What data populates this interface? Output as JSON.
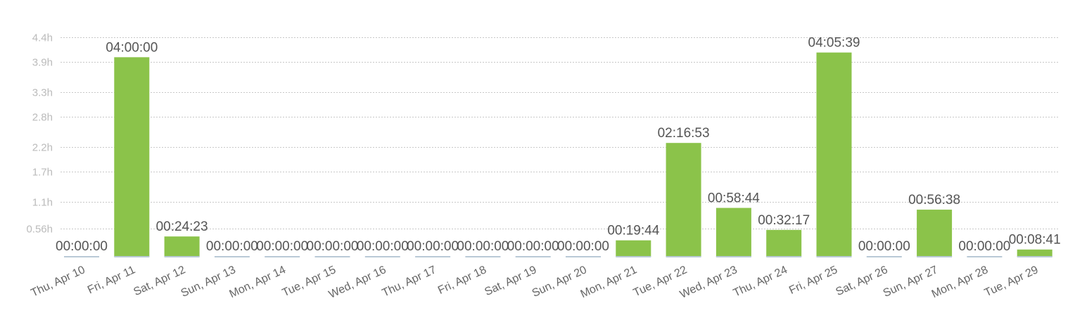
{
  "chart_data": {
    "type": "bar",
    "y_ticks": [
      "4.4h",
      "3.9h",
      "3.3h",
      "2.8h",
      "2.2h",
      "1.7h",
      "1.1h",
      "0.56h"
    ],
    "y_tick_values": [
      4.4,
      3.9,
      3.3,
      2.8,
      2.2,
      1.7,
      1.1,
      0.56
    ],
    "ylim": [
      0,
      4.47
    ],
    "grid": true,
    "bar_color": "#8bc34a",
    "zero_bar_color": "#b9c9d6",
    "categories": [
      "Thu, Apr 10",
      "Fri, Apr 11",
      "Sat, Apr 12",
      "Sun, Apr 13",
      "Mon, Apr 14",
      "Tue, Apr 15",
      "Wed, Apr 16",
      "Thu, Apr 17",
      "Fri, Apr 18",
      "Sat, Apr 19",
      "Sun, Apr 20",
      "Mon, Apr 21",
      "Tue, Apr 22",
      "Wed, Apr 23",
      "Thu, Apr 24",
      "Fri, Apr 25",
      "Sat, Apr 26",
      "Sun, Apr 27",
      "Mon, Apr 28",
      "Tue, Apr 29"
    ],
    "values_hours": [
      0,
      4.0,
      0.4064,
      0,
      0,
      0,
      0,
      0,
      0,
      0,
      0,
      0.3289,
      2.2814,
      0.9789,
      0.5381,
      4.0942,
      0,
      0.9439,
      0,
      0.1447
    ],
    "labels": [
      "00:00:00",
      "04:00:00",
      "00:24:23",
      "00:00:00",
      "00:00:00",
      "00:00:00",
      "00:00:00",
      "00:00:00",
      "00:00:00",
      "00:00:00",
      "00:00:00",
      "00:19:44",
      "02:16:53",
      "00:58:44",
      "00:32:17",
      "04:05:39",
      "00:00:00",
      "00:56:38",
      "00:00:00",
      "00:08:41"
    ]
  }
}
